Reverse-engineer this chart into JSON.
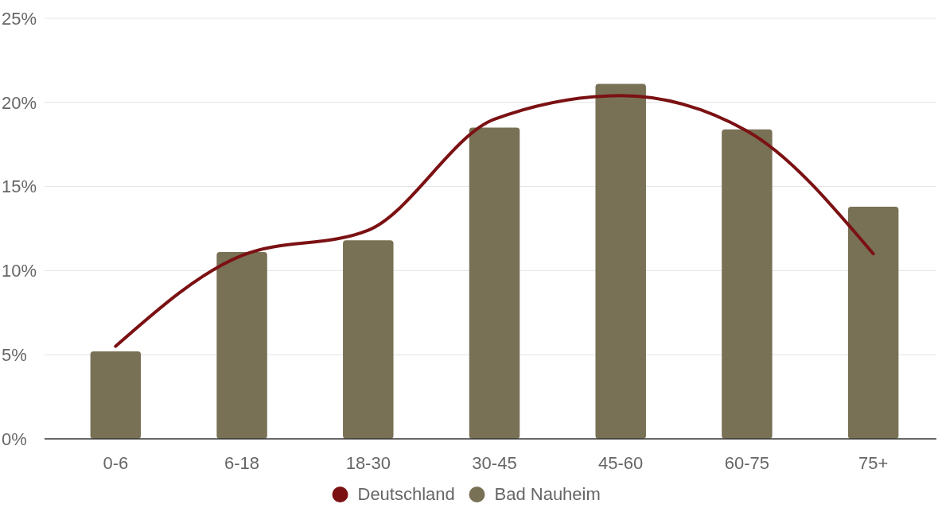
{
  "chart_data": {
    "type": "bar",
    "categories": [
      "0-6",
      "6-18",
      "18-30",
      "30-45",
      "45-60",
      "60-75",
      "75+"
    ],
    "series": [
      {
        "name": "Deutschland",
        "type": "line",
        "color": "#7b1113",
        "values": [
          5.5,
          10.9,
          12.4,
          19.0,
          20.4,
          18.3,
          11.0
        ]
      },
      {
        "name": "Bad Nauheim",
        "color": "#797155",
        "values": [
          5.2,
          11.1,
          11.8,
          18.5,
          21.1,
          18.4,
          13.8
        ]
      }
    ],
    "ylim": [
      0,
      25
    ],
    "yticks": [
      {
        "value": 0,
        "label": "0%"
      },
      {
        "value": 5,
        "label": "5%"
      },
      {
        "value": 10,
        "label": "10%"
      },
      {
        "value": 15,
        "label": "15%"
      },
      {
        "value": 20,
        "label": "20%"
      },
      {
        "value": 25,
        "label": "25%"
      }
    ],
    "grid": "y",
    "legend": "bottom",
    "marker": "none"
  }
}
